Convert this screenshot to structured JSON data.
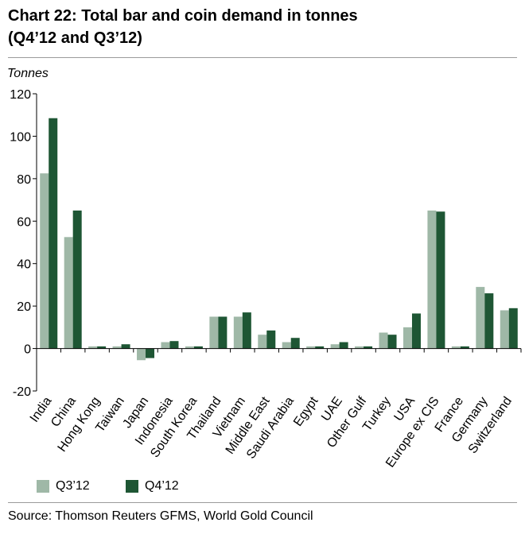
{
  "chart_data": {
    "type": "bar",
    "title_line1": "Chart 22: Total bar and coin demand in tonnes",
    "title_line2": "(Q4’12 and Q3’12)",
    "ylabel": "Tonnes",
    "xlabel": "",
    "ylim": [
      -20,
      120
    ],
    "yticks": [
      -20,
      0,
      20,
      40,
      60,
      80,
      100,
      120
    ],
    "grid": false,
    "legend_position": "bottom-left",
    "categories": [
      "India",
      "China",
      "Hong Kong",
      "Taiwan",
      "Japan",
      "Indonesia",
      "South Korea",
      "Thailand",
      "Vietnam",
      "Middle East",
      "Saudi Arabia",
      "Egypt",
      "UAE",
      "Other Gulf",
      "Turkey",
      "USA",
      "Europe ex CIS",
      "France",
      "Germany",
      "Switzerland"
    ],
    "series": [
      {
        "name": "Q3’12",
        "color": "#9fb8a7",
        "values": [
          82.5,
          52.5,
          1,
          1,
          -5.5,
          3,
          1,
          15,
          15,
          6.5,
          3,
          1,
          2,
          1,
          7.5,
          10,
          65,
          1,
          29,
          18
        ]
      },
      {
        "name": "Q4’12",
        "color": "#1e5634",
        "values": [
          108.5,
          65,
          1,
          2,
          -4.5,
          3.5,
          1,
          15,
          17,
          8.5,
          5,
          1,
          3,
          1,
          6.5,
          16.5,
          64.5,
          1,
          26,
          19
        ]
      }
    ]
  },
  "source": "Source: Thomson Reuters GFMS, World Gold Council"
}
